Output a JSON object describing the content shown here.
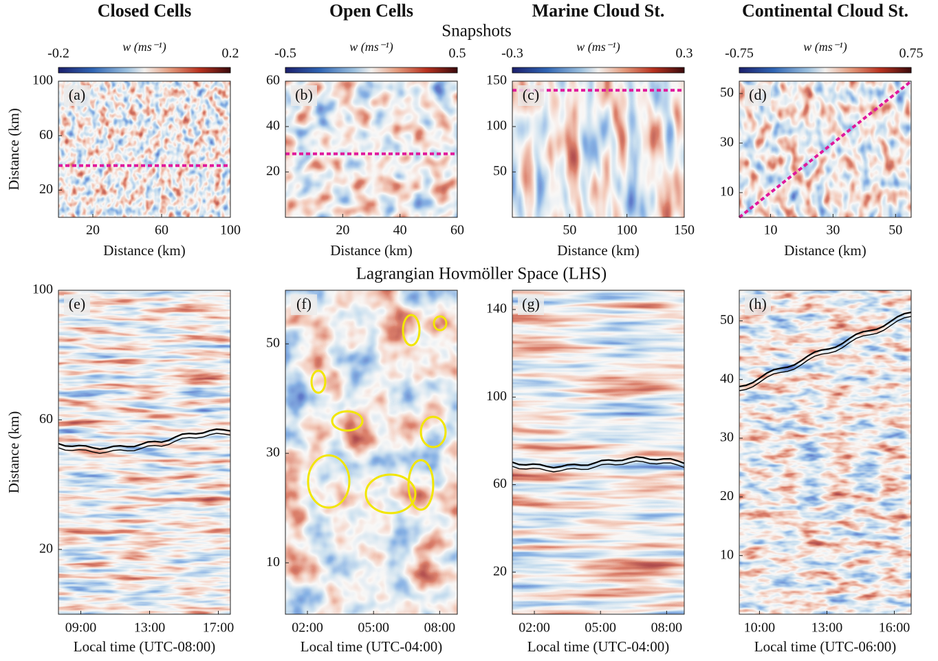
{
  "row_titles": {
    "snapshots": "Snapshots",
    "lhs": "Lagrangian Hovmöller Space (LHS)"
  },
  "columns": [
    {
      "title": "Closed Cells",
      "colorbar": {
        "label": "w (ms⁻¹)",
        "lim": [
          -0.2,
          0.2
        ],
        "ticks": [
          -0.2,
          0.2
        ]
      },
      "snapshot": {
        "letter": "(a)",
        "xlabel": "Distance (km)",
        "ylabel": "Distance (km)",
        "xlim": [
          0,
          100
        ],
        "ylim": [
          0,
          100
        ],
        "xticks": [
          20,
          60,
          100
        ],
        "yticks": [
          20,
          60,
          100
        ],
        "transect": {
          "x": [
            0,
            100
          ],
          "y": [
            38,
            38
          ],
          "color": "#e0189c"
        }
      },
      "lhs": {
        "letter": "(e)",
        "xlabel": "Local time (UTC-08:00)",
        "ylabel": "Distance (km)",
        "xlim": [
          7.7,
          17.7
        ],
        "ylim": [
          0,
          100
        ],
        "xticks": [
          {
            "value": 9,
            "label": "09:00"
          },
          {
            "value": 13,
            "label": "13:00"
          },
          {
            "value": 17,
            "label": "17:00"
          }
        ],
        "yticks": [
          20,
          60,
          100
        ]
      }
    },
    {
      "title": "Open Cells",
      "colorbar": {
        "label": "w (ms⁻¹)",
        "lim": [
          -0.5,
          0.5
        ],
        "ticks": [
          -0.5,
          0.5
        ]
      },
      "snapshot": {
        "letter": "(b)",
        "xlabel": "Distance (km)",
        "xlim": [
          0,
          60
        ],
        "ylim": [
          0,
          60
        ],
        "xticks": [
          20,
          40,
          60
        ],
        "yticks": [
          20,
          40,
          60
        ],
        "transect": {
          "x": [
            0,
            60
          ],
          "y": [
            28,
            28
          ],
          "color": "#e0189c"
        }
      },
      "lhs": {
        "letter": "(f)",
        "xlabel": "Local time (UTC-04:00)",
        "xlim": [
          1.0,
          8.8
        ],
        "ylim": [
          0.6,
          59.8
        ],
        "xticks": [
          {
            "value": 2,
            "label": "02:00"
          },
          {
            "value": 5,
            "label": "05:00"
          },
          {
            "value": 8,
            "label": "08:00"
          }
        ],
        "yticks": [
          10,
          30,
          50
        ]
      }
    },
    {
      "title": "Marine Cloud St.",
      "colorbar": {
        "label": "w (ms⁻¹)",
        "lim": [
          -0.3,
          0.3
        ],
        "ticks": [
          -0.3,
          0.3
        ]
      },
      "snapshot": {
        "letter": "(c)",
        "xlabel": "Distance (km)",
        "xlim": [
          0,
          150
        ],
        "ylim": [
          0,
          150
        ],
        "xticks": [
          50,
          100,
          150
        ],
        "yticks": [
          50,
          100,
          150
        ],
        "transect": {
          "x": [
            0,
            150
          ],
          "y": [
            140,
            140
          ],
          "color": "#e0189c"
        }
      },
      "lhs": {
        "letter": "(g)",
        "xlabel": "Local time (UTC-04:00)",
        "xlim": [
          1.0,
          8.8
        ],
        "ylim": [
          0.8,
          148.8
        ],
        "xticks": [
          {
            "value": 2,
            "label": "02:00"
          },
          {
            "value": 5,
            "label": "05:00"
          },
          {
            "value": 8,
            "label": "08:00"
          }
        ],
        "yticks": [
          20,
          60,
          100,
          140
        ]
      }
    },
    {
      "title": "Continental Cloud St.",
      "colorbar": {
        "label": "w (ms⁻¹)",
        "lim": [
          -0.75,
          0.75
        ],
        "ticks": [
          -0.75,
          0.75
        ]
      },
      "snapshot": {
        "letter": "(d)",
        "xlabel": "Distance (km)",
        "xlim": [
          0,
          55
        ],
        "ylim": [
          0,
          55
        ],
        "xticks": [
          10,
          30,
          50
        ],
        "yticks": [
          10,
          30,
          50
        ],
        "transect": {
          "x": [
            0,
            55
          ],
          "y": [
            0,
            55
          ],
          "color": "#e0189c"
        }
      },
      "lhs": {
        "letter": "(h)",
        "xlabel": "Local time (UTC-06:00)",
        "xlim": [
          9.1,
          16.75
        ],
        "ylim": [
          0,
          55.2
        ],
        "xticks": [
          {
            "value": 10,
            "label": "10:00"
          },
          {
            "value": 13,
            "label": "13:00"
          },
          {
            "value": 16,
            "label": "16:00"
          }
        ],
        "yticks": [
          10,
          20,
          30,
          40,
          50
        ]
      }
    }
  ]
}
